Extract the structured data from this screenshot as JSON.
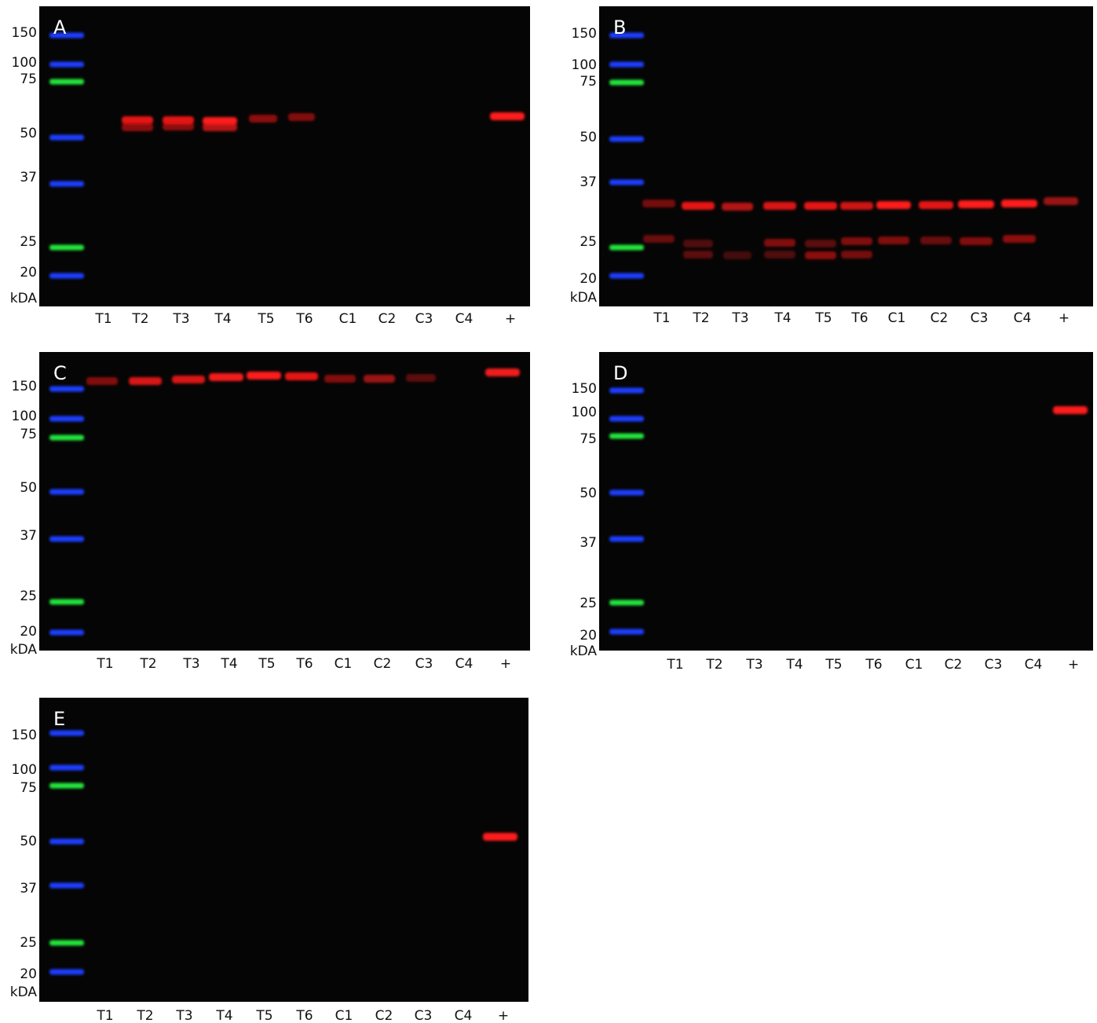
{
  "panels": [
    {
      "letter": "A",
      "markers": [
        "150",
        "100",
        "75",
        "50",
        "37",
        "25",
        "20"
      ],
      "unit": "kDA",
      "lanes": [
        "T1",
        "T2",
        "T3",
        "T4",
        "T5",
        "T6",
        "C1",
        "C2",
        "C3",
        "C4",
        "+"
      ]
    },
    {
      "letter": "B",
      "markers": [
        "150",
        "100",
        "75",
        "50",
        "37",
        "25",
        "20"
      ],
      "unit": "kDA",
      "lanes": [
        "T1",
        "T2",
        "T3",
        "T4",
        "T5",
        "T6",
        "C1",
        "C2",
        "C3",
        "C4",
        "+"
      ]
    },
    {
      "letter": "C",
      "markers": [
        "150",
        "100",
        "75",
        "50",
        "37",
        "25",
        "20"
      ],
      "unit": "kDA",
      "lanes": [
        "T1",
        "T2",
        "T3",
        "T4",
        "T5",
        "T6",
        "C1",
        "C2",
        "C3",
        "C4",
        "+"
      ]
    },
    {
      "letter": "D",
      "markers": [
        "150",
        "100",
        "75",
        "50",
        "37",
        "25",
        "20"
      ],
      "unit": "kDA",
      "lanes": [
        "T1",
        "T2",
        "T3",
        "T4",
        "T5",
        "T6",
        "C1",
        "C2",
        "C3",
        "C4",
        "+"
      ]
    },
    {
      "letter": "E",
      "markers": [
        "150",
        "100",
        "75",
        "50",
        "37",
        "25",
        "20"
      ],
      "unit": "kDA",
      "lanes": [
        "T1",
        "T2",
        "T3",
        "T4",
        "T5",
        "T6",
        "C1",
        "C2",
        "C3",
        "C4",
        "+"
      ]
    }
  ]
}
